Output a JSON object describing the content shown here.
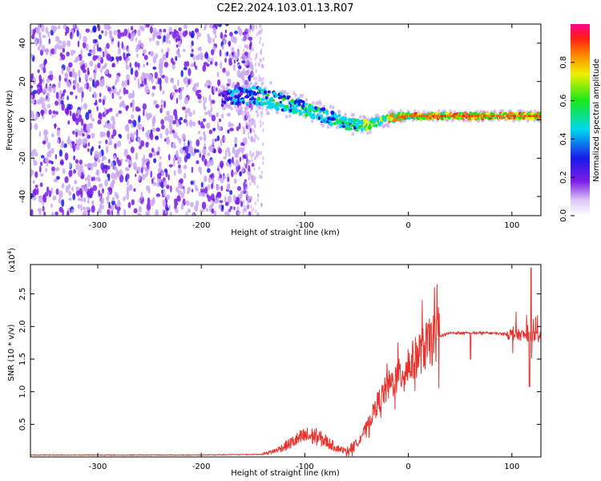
{
  "title": "C2E2.2024.103.01.13.R07",
  "colors": {
    "snr_line": "#e8322c",
    "axis": "#000000",
    "scatter_purple": "#7a1ce6",
    "scatter_light": "#c9a8f2",
    "ridge_core": "#ff2a2a"
  },
  "chart_data": [
    {
      "type": "heatmap",
      "xlabel": "Height of straight line (km)",
      "ylabel": "Frequency (Hz)",
      "xlim": [
        -365,
        128
      ],
      "ylim": [
        -50,
        50
      ],
      "xticks": [
        -300,
        -200,
        -100,
        0,
        100
      ],
      "yticks": [
        -40,
        -20,
        0,
        20,
        40
      ],
      "colorbar": {
        "label": "Normalized spectral amplitude",
        "range": [
          0.0,
          1.0
        ],
        "ticks": [
          0.0,
          0.2,
          0.4,
          0.6,
          0.8
        ],
        "tick_labels": [
          "0.0",
          "0.2",
          "0.4",
          "0.6",
          "0.8"
        ],
        "colormap": "rainbow (white-purple-blue-cyan-green-yellow-red-magenta)"
      },
      "noise_region": {
        "x": [
          -365,
          -150
        ],
        "freq": [
          -50,
          50
        ],
        "amplitude": 0.1
      },
      "ridge": {
        "x": [
          -180,
          -160,
          -140,
          -120,
          -100,
          -80,
          -60,
          -45,
          -30,
          -15,
          0,
          20,
          40,
          60,
          80,
          100,
          120
        ],
        "freq": [
          11,
          13,
          12,
          9,
          6,
          2,
          -2,
          -3,
          -1,
          1,
          2,
          2,
          2,
          2,
          2,
          2,
          2
        ],
        "width": [
          5,
          6,
          7,
          6,
          5,
          5,
          4,
          4,
          3,
          3,
          2,
          2,
          2,
          2,
          2,
          2,
          2
        ],
        "amplitude": [
          0.3,
          0.45,
          0.5,
          0.55,
          0.55,
          0.55,
          0.55,
          0.6,
          0.7,
          0.8,
          0.85,
          0.85,
          0.85,
          0.85,
          0.85,
          0.85,
          0.8
        ]
      }
    },
    {
      "type": "line",
      "xlabel": "Height of straight line (km)",
      "ylabel": "SNR (10 * v/v)",
      "scale_label": "(x10",
      "scale_exponent": "4",
      "scale_close": ")",
      "xlim": [
        -365,
        128
      ],
      "ylim": [
        0,
        2.95
      ],
      "xticks": [
        -300,
        -200,
        -100,
        0,
        100
      ],
      "yticks": [
        0.5,
        1.0,
        1.5,
        2.0,
        2.5
      ],
      "ytick_labels": [
        "0.5",
        "1.0",
        "1.5",
        "2.0",
        "2.5"
      ],
      "series": [
        {
          "x": [
            -365,
            -200,
            -140,
            -130,
            -120,
            -110,
            -100,
            -90,
            -80,
            -70,
            -60,
            -50,
            -40,
            -30,
            -20,
            -10,
            0,
            10,
            20,
            30,
            40,
            60,
            80,
            100,
            110,
            120,
            128
          ],
          "values": [
            0.03,
            0.03,
            0.04,
            0.07,
            0.13,
            0.2,
            0.26,
            0.26,
            0.2,
            0.12,
            0.07,
            0.2,
            0.45,
            0.8,
            1.05,
            1.2,
            1.35,
            1.55,
            1.7,
            1.85,
            1.9,
            1.9,
            1.9,
            1.88,
            1.87,
            1.85,
            1.83
          ]
        }
      ]
    }
  ]
}
